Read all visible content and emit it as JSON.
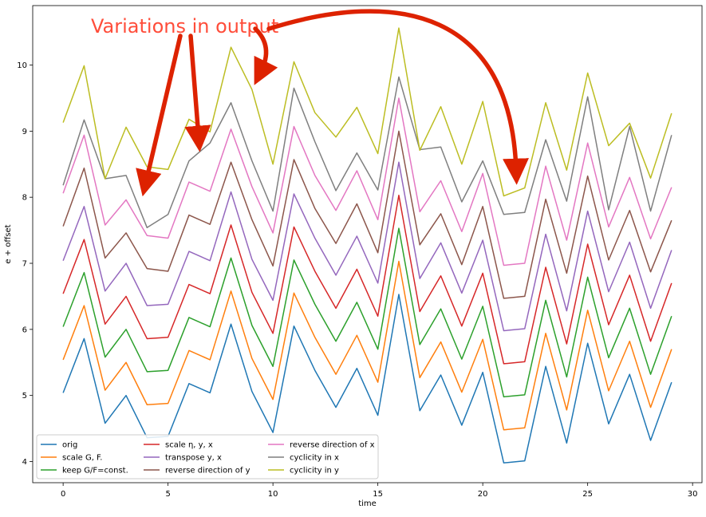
{
  "chart_data": {
    "type": "line",
    "xlabel": "time",
    "ylabel": "e + offset",
    "xlim": [
      -1.45,
      30.45
    ],
    "ylim": [
      3.68,
      10.9
    ],
    "x_ticks": [
      0,
      5,
      10,
      15,
      20,
      25,
      30
    ],
    "y_ticks": [
      4,
      5,
      6,
      7,
      8,
      9,
      10
    ],
    "x": [
      0,
      1,
      2,
      3,
      4,
      5,
      6,
      7,
      8,
      9,
      10,
      11,
      12,
      13,
      14,
      15,
      16,
      17,
      18,
      19,
      20,
      21,
      22,
      23,
      24,
      25,
      26,
      27,
      28,
      29
    ],
    "base_values": [
      5.04,
      5.86,
      4.58,
      5.0,
      4.36,
      4.38,
      5.18,
      5.04,
      6.08,
      5.06,
      4.44,
      6.05,
      5.38,
      4.82,
      5.41,
      4.7,
      6.53,
      4.77,
      5.31,
      4.55,
      5.35,
      3.98,
      4.01,
      5.44,
      4.28,
      5.79,
      4.57,
      5.32,
      4.32,
      5.2
    ],
    "series": [
      {
        "name": "orig",
        "color": "#1f77b4",
        "values": [
          5.04,
          5.86,
          4.58,
          5.0,
          4.36,
          4.38,
          5.18,
          5.04,
          6.08,
          5.06,
          4.44,
          6.05,
          5.38,
          4.82,
          5.41,
          4.7,
          6.53,
          4.77,
          5.31,
          4.55,
          5.35,
          3.98,
          4.01,
          5.44,
          4.28,
          5.79,
          4.57,
          5.32,
          4.32,
          5.2
        ]
      },
      {
        "name": "scale G, F.",
        "color": "#ff7f0e",
        "values": [
          5.54,
          6.36,
          5.08,
          5.5,
          4.86,
          4.88,
          5.68,
          5.54,
          6.58,
          5.56,
          4.94,
          6.55,
          5.88,
          5.32,
          5.91,
          5.2,
          7.03,
          5.27,
          5.81,
          5.05,
          5.85,
          4.48,
          4.51,
          5.94,
          4.78,
          6.29,
          5.07,
          5.82,
          4.82,
          5.7
        ]
      },
      {
        "name": "keep G/F=const.",
        "color": "#2ca02c",
        "values": [
          6.04,
          6.86,
          5.58,
          6.0,
          5.36,
          5.38,
          6.18,
          6.04,
          7.08,
          6.06,
          5.44,
          7.05,
          6.38,
          5.82,
          6.41,
          5.7,
          7.53,
          5.77,
          6.31,
          5.55,
          6.35,
          4.98,
          5.01,
          6.44,
          5.28,
          6.79,
          5.57,
          6.32,
          5.32,
          6.2
        ]
      },
      {
        "name": "scale η, y, x",
        "color": "#d62728",
        "values": [
          6.54,
          7.36,
          6.08,
          6.5,
          5.86,
          5.88,
          6.68,
          6.54,
          7.58,
          6.56,
          5.94,
          7.55,
          6.88,
          6.32,
          6.91,
          6.2,
          8.03,
          6.27,
          6.81,
          6.05,
          6.85,
          5.48,
          5.51,
          6.94,
          5.78,
          7.29,
          6.07,
          6.82,
          5.82,
          6.7
        ]
      },
      {
        "name": "transpose y, x",
        "color": "#9467bd",
        "values": [
          7.04,
          7.86,
          6.58,
          7.0,
          6.36,
          6.38,
          7.18,
          7.04,
          8.08,
          7.06,
          6.44,
          8.05,
          7.38,
          6.82,
          7.41,
          6.7,
          8.53,
          6.77,
          7.31,
          6.55,
          7.35,
          5.98,
          6.01,
          7.44,
          6.28,
          7.79,
          6.57,
          7.32,
          6.32,
          7.2
        ]
      },
      {
        "name": "reverse direction of y",
        "color": "#8c564b",
        "values": [
          7.56,
          8.44,
          7.08,
          7.46,
          6.92,
          6.88,
          7.73,
          7.59,
          8.53,
          7.66,
          6.96,
          8.57,
          7.83,
          7.3,
          7.9,
          7.16,
          9.0,
          7.28,
          7.75,
          6.98,
          7.86,
          6.47,
          6.5,
          7.97,
          6.85,
          8.32,
          7.05,
          7.8,
          6.87,
          7.65
        ]
      },
      {
        "name": "reverse direction of x",
        "color": "#e377c2",
        "values": [
          8.06,
          8.94,
          7.58,
          7.96,
          7.42,
          7.38,
          8.23,
          8.09,
          9.03,
          8.16,
          7.46,
          9.07,
          8.33,
          7.8,
          8.4,
          7.66,
          9.5,
          7.78,
          8.25,
          7.48,
          8.36,
          6.97,
          7.0,
          8.47,
          7.35,
          8.82,
          7.55,
          8.3,
          7.37,
          8.15
        ]
      },
      {
        "name": "cyclicity in x",
        "color": "#7f7f7f",
        "values": [
          8.18,
          9.17,
          8.28,
          8.33,
          7.54,
          7.74,
          8.55,
          8.82,
          9.43,
          8.55,
          7.79,
          9.65,
          8.84,
          8.1,
          8.67,
          8.11,
          9.82,
          8.72,
          8.76,
          7.93,
          8.55,
          7.74,
          7.77,
          8.87,
          7.94,
          9.52,
          7.81,
          9.07,
          7.79,
          8.94
        ]
      },
      {
        "name": "cyclicity in y",
        "color": "#bcbd22",
        "values": [
          9.13,
          9.99,
          8.28,
          9.06,
          8.46,
          8.42,
          9.18,
          8.99,
          10.27,
          9.63,
          8.5,
          10.05,
          9.28,
          8.91,
          9.36,
          8.66,
          10.56,
          8.71,
          9.37,
          8.5,
          9.45,
          8.02,
          8.14,
          9.43,
          8.41,
          9.88,
          8.78,
          9.12,
          8.29,
          9.27
        ]
      }
    ],
    "legend": {
      "position": "lower-left",
      "columns": 3
    },
    "grid": false,
    "annotations": [
      {
        "text": "Variations in output",
        "color": "#ff4d3a",
        "arrow_color": "#dd2200"
      }
    ]
  }
}
